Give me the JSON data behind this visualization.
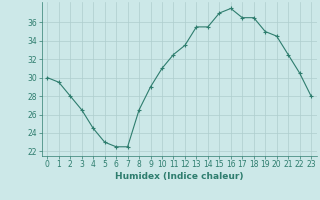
{
  "x": [
    0,
    1,
    2,
    3,
    4,
    5,
    6,
    7,
    8,
    9,
    10,
    11,
    12,
    13,
    14,
    15,
    16,
    17,
    18,
    19,
    20,
    21,
    22,
    23
  ],
  "y": [
    30,
    29.5,
    28,
    26.5,
    24.5,
    23,
    22.5,
    22.5,
    26.5,
    29,
    31,
    32.5,
    33.5,
    35.5,
    35.5,
    37,
    37.5,
    36.5,
    36.5,
    35,
    34.5,
    32.5,
    30.5,
    28
  ],
  "line_color": "#2e7d6e",
  "marker": "+",
  "bg_color": "#cce8e8",
  "grid_color": "#aecece",
  "xlabel": "Humidex (Indice chaleur)",
  "xlim": [
    -0.5,
    23.5
  ],
  "ylim": [
    21.5,
    38.2
  ],
  "yticks": [
    22,
    24,
    26,
    28,
    30,
    32,
    34,
    36
  ],
  "xticks": [
    0,
    1,
    2,
    3,
    4,
    5,
    6,
    7,
    8,
    9,
    10,
    11,
    12,
    13,
    14,
    15,
    16,
    17,
    18,
    19,
    20,
    21,
    22,
    23
  ],
  "label_fontsize": 6.5,
  "tick_fontsize": 5.5
}
